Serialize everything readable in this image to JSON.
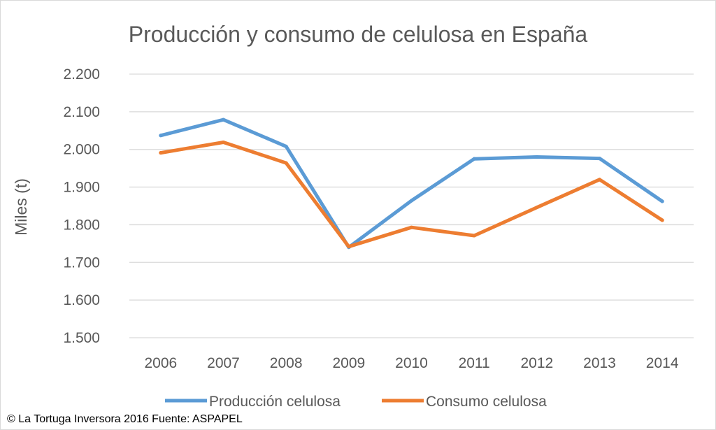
{
  "chart_data": {
    "type": "line",
    "title": "Producción y consumo de celulosa en España",
    "xlabel": "",
    "ylabel": "Miles (t)",
    "categories": [
      "2006",
      "2007",
      "2008",
      "2009",
      "2010",
      "2011",
      "2012",
      "2013",
      "2014"
    ],
    "ylim": [
      1500,
      2200
    ],
    "yticks": [
      1500,
      1600,
      1700,
      1800,
      1900,
      2000,
      2100,
      2200
    ],
    "ytick_labels": [
      "1.500",
      "1.600",
      "1.700",
      "1.800",
      "1.900",
      "2.000",
      "2.100",
      "2.200"
    ],
    "grid": true,
    "legend_position": "bottom",
    "series": [
      {
        "name": "Producción celulosa",
        "color": "#5B9BD5",
        "values": [
          2037,
          2079,
          2008,
          1740,
          1864,
          1975,
          1980,
          1976,
          1862
        ]
      },
      {
        "name": "Consumo celulosa",
        "color": "#ED7D31",
        "values": [
          1991,
          2019,
          1964,
          1742,
          1793,
          1771,
          1846,
          1920,
          1812
        ]
      }
    ]
  },
  "credit": "© La Tortuga Inversora 2016 Fuente: ASPAPEL"
}
